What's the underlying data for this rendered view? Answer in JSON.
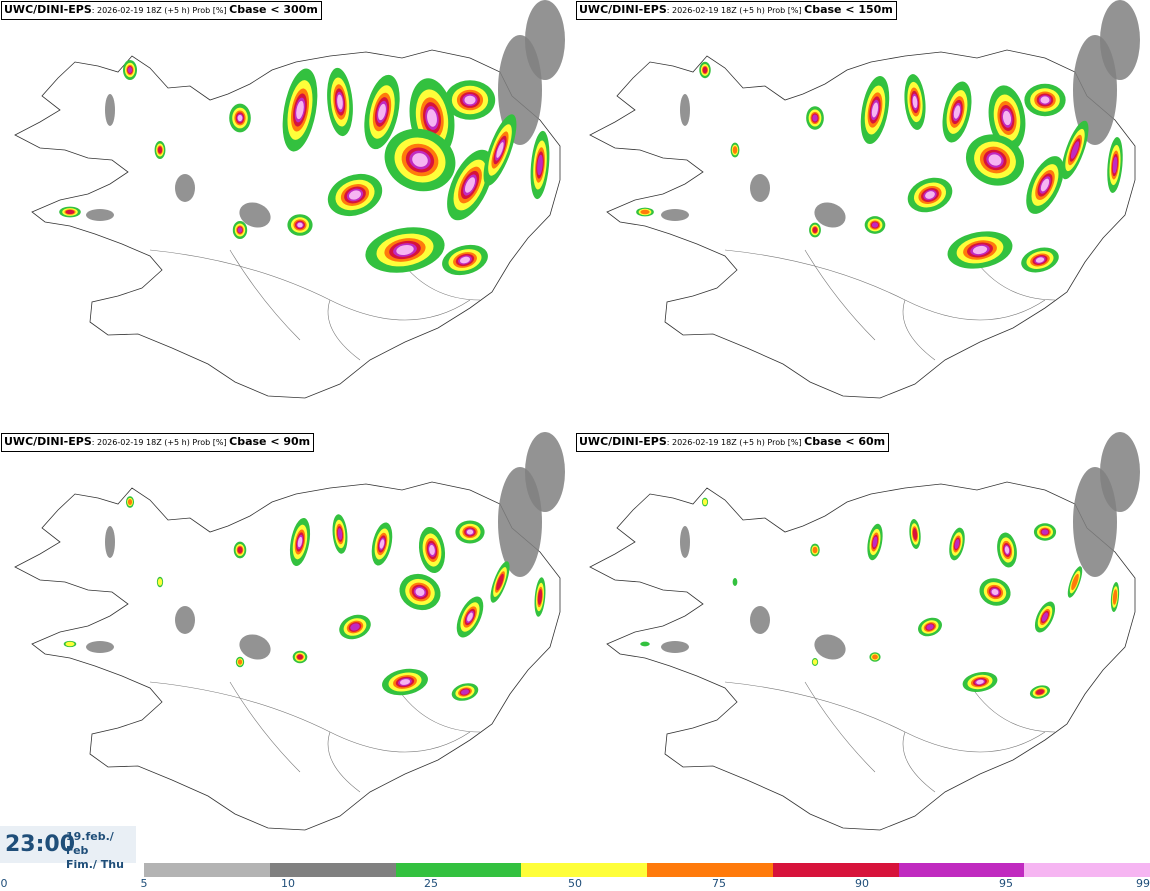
{
  "panels": [
    {
      "source": "UWC/DINI-EPS",
      "meta": ": 2026-02-19 18Z (+5 h) Prob [%] ",
      "variable": "Cbase < 300m"
    },
    {
      "source": "UWC/DINI-EPS",
      "meta": ": 2026-02-19 18Z (+5 h) Prob [%] ",
      "variable": "Cbase < 150m"
    },
    {
      "source": "UWC/DINI-EPS",
      "meta": ": 2026-02-19 18Z (+5 h) Prob [%] ",
      "variable": "Cbase < 90m"
    },
    {
      "source": "UWC/DINI-EPS",
      "meta": ": 2026-02-19 18Z (+5 h) Prob [%] ",
      "variable": "Cbase < 60m"
    }
  ],
  "valid_time": {
    "time": "23:00",
    "date_line1": "19.feb./ Feb",
    "date_line2": "Fim./ Thu"
  },
  "colorbar": {
    "ticks": [
      "0",
      "5",
      "10",
      "25",
      "50",
      "75",
      "90",
      "95",
      "99"
    ],
    "colors": [
      "#b3b3b3",
      "#808080",
      "#33c13f",
      "#fefe3a",
      "#ff7a0b",
      "#d7133b",
      "#c02ac0",
      "#f6b5f2"
    ]
  },
  "legend_colors": {
    "grey_light": "#b3b3b3",
    "grey_dark": "#808080",
    "green": "#33c13f",
    "yellow": "#fefe3a",
    "orange": "#ff7a0b",
    "red": "#d7133b",
    "magenta": "#c02ac0",
    "pink": "#f6b5f2"
  }
}
